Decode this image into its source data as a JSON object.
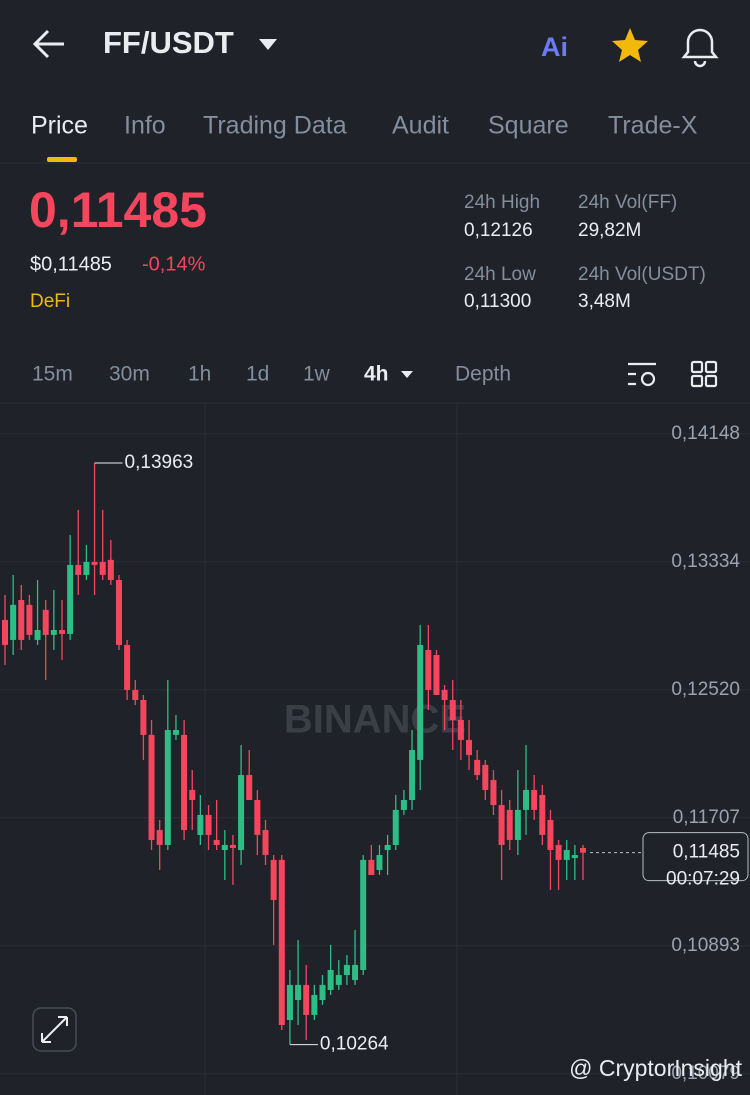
{
  "header": {
    "pair": "FF/USDT",
    "ai_label": "Ai"
  },
  "tabs": [
    "Price",
    "Info",
    "Trading Data",
    "Audit",
    "Square",
    "Trade-X"
  ],
  "price": {
    "last": "0,11485",
    "usd": "$0,11485",
    "change": "-0,14%",
    "tag": "DeFi"
  },
  "stats": [
    {
      "label": "24h High",
      "value": "0,12126"
    },
    {
      "label": "24h Vol(FF)",
      "value": "29,82M"
    },
    {
      "label": "24h Low",
      "value": "0,11300"
    },
    {
      "label": "24h Vol(USDT)",
      "value": "3,48M"
    }
  ],
  "intervals": [
    "15m",
    "30m",
    "1h",
    "1d",
    "1w",
    "4h",
    "Depth"
  ],
  "watermark": "BINANCE",
  "footer": "@ CryptorInsight",
  "chart_data": {
    "type": "candlestick",
    "up_color": "#2ebd85",
    "down_color": "#f6465d",
    "grid": true,
    "ylim": [
      0.09944,
      0.14332
    ],
    "yticks": [
      {
        "value": 0.14148,
        "label": "0,14148"
      },
      {
        "value": 0.13334,
        "label": "0,13334"
      },
      {
        "value": 0.1252,
        "label": "0,12520"
      },
      {
        "value": 0.11707,
        "label": "0,11707"
      },
      {
        "value": 0.10893,
        "label": "0,10893"
      },
      {
        "value": 0.10079,
        "label": "0,10079"
      }
    ],
    "annotations": {
      "high": {
        "value": 0.13963,
        "label": "0,13963"
      },
      "low": {
        "value": 0.10264,
        "label": "0,10264"
      },
      "last": {
        "value": 0.11485,
        "label": "0,11485",
        "countdown": "00:07:29"
      }
    },
    "ohlc": [
      [
        0.12965,
        0.13124,
        0.12679,
        0.12806
      ],
      [
        0.12838,
        0.13251,
        0.12742,
        0.13061
      ],
      [
        0.13092,
        0.13188,
        0.12774,
        0.12838
      ],
      [
        0.13061,
        0.13124,
        0.12838,
        0.1287
      ],
      [
        0.12838,
        0.13219,
        0.12806,
        0.12901
      ],
      [
        0.13029,
        0.13092,
        0.12583,
        0.1287
      ],
      [
        0.1287,
        0.13156,
        0.12774,
        0.12901
      ],
      [
        0.12901,
        0.13092,
        0.12711,
        0.12876
      ],
      [
        0.12876,
        0.13506,
        0.12838,
        0.13315
      ],
      [
        0.13315,
        0.13665,
        0.13124,
        0.13251
      ],
      [
        0.13251,
        0.13442,
        0.13219,
        0.13334
      ],
      [
        0.13334,
        0.13963,
        0.13124,
        0.13315
      ],
      [
        0.13334,
        0.13665,
        0.13219,
        0.13251
      ],
      [
        0.13347,
        0.13474,
        0.13188,
        0.13219
      ],
      [
        0.13219,
        0.13251,
        0.12774,
        0.12806
      ],
      [
        0.12806,
        0.12838,
        0.12456,
        0.1252
      ],
      [
        0.1252,
        0.12583,
        0.12424,
        0.12456
      ],
      [
        0.12456,
        0.12488,
        0.12075,
        0.12234
      ],
      [
        0.12234,
        0.12329,
        0.11502,
        0.11566
      ],
      [
        0.11629,
        0.11693,
        0.11375,
        0.11534
      ],
      [
        0.11534,
        0.12583,
        0.11502,
        0.12265
      ],
      [
        0.12234,
        0.12361,
        0.12202,
        0.12265
      ],
      [
        0.12234,
        0.12329,
        0.11566,
        0.11629
      ],
      [
        0.11884,
        0.12011,
        0.11629,
        0.1182
      ],
      [
        0.11598,
        0.11852,
        0.11534,
        0.11725
      ],
      [
        0.11725,
        0.11788,
        0.11502,
        0.11598
      ],
      [
        0.11566,
        0.1182,
        0.11502,
        0.11534
      ],
      [
        0.11502,
        0.11629,
        0.11311,
        0.11534
      ],
      [
        0.11534,
        0.11598,
        0.1128,
        0.11515
      ],
      [
        0.11502,
        0.1217,
        0.11407,
        0.11979
      ],
      [
        0.11979,
        0.12138,
        0.1182,
        0.1182
      ],
      [
        0.1182,
        0.11884,
        0.1147,
        0.11598
      ],
      [
        0.11629,
        0.11693,
        0.11407,
        0.1147
      ],
      [
        0.11439,
        0.1147,
        0.10898,
        0.11184
      ],
      [
        0.11439,
        0.1147,
        0.10357,
        0.10389
      ],
      [
        0.10421,
        0.10739,
        0.10264,
        0.10644
      ],
      [
        0.10548,
        0.1093,
        0.10389,
        0.10644
      ],
      [
        0.10644,
        0.10771,
        0.10294,
        0.10453
      ],
      [
        0.10453,
        0.10644,
        0.10421,
        0.1058
      ],
      [
        0.10548,
        0.10707,
        0.10517,
        0.10644
      ],
      [
        0.10612,
        0.10898,
        0.1058,
        0.10739
      ],
      [
        0.10644,
        0.10803,
        0.10612,
        0.10707
      ],
      [
        0.10707,
        0.10834,
        0.10644,
        0.10771
      ],
      [
        0.10675,
        0.10993,
        0.10644,
        0.10771
      ],
      [
        0.10739,
        0.1147,
        0.10707,
        0.11439
      ],
      [
        0.11439,
        0.11534,
        0.11343,
        0.11343
      ],
      [
        0.11375,
        0.11534,
        0.11343,
        0.1147
      ],
      [
        0.11502,
        0.11598,
        0.11343,
        0.11534
      ],
      [
        0.11534,
        0.11852,
        0.11502,
        0.11757
      ],
      [
        0.11757,
        0.11884,
        0.11725,
        0.1182
      ],
      [
        0.1182,
        0.12265,
        0.11757,
        0.12138
      ],
      [
        0.12075,
        0.12933,
        0.11884,
        0.12806
      ],
      [
        0.12774,
        0.12933,
        0.12393,
        0.1252
      ],
      [
        0.12742,
        0.12774,
        0.12488,
        0.12488
      ],
      [
        0.1252,
        0.12551,
        0.12265,
        0.12456
      ],
      [
        0.12456,
        0.12583,
        0.12138,
        0.12329
      ],
      [
        0.12329,
        0.12456,
        0.12075,
        0.12202
      ],
      [
        0.12202,
        0.12329,
        0.12011,
        0.12106
      ],
      [
        0.12075,
        0.12138,
        0.11947,
        0.11979
      ],
      [
        0.12043,
        0.12075,
        0.1182,
        0.11884
      ],
      [
        0.11947,
        0.12011,
        0.11725,
        0.11788
      ],
      [
        0.11788,
        0.11884,
        0.11311,
        0.11534
      ],
      [
        0.11757,
        0.1182,
        0.11502,
        0.11566
      ],
      [
        0.11566,
        0.12011,
        0.1147,
        0.11757
      ],
      [
        0.11757,
        0.1217,
        0.11598,
        0.11884
      ],
      [
        0.11884,
        0.11979,
        0.11693,
        0.11757
      ],
      [
        0.11852,
        0.11916,
        0.11534,
        0.11598
      ],
      [
        0.11693,
        0.11757,
        0.11248,
        0.11502
      ],
      [
        0.11534,
        0.11566,
        0.11248,
        0.11439
      ],
      [
        0.11439,
        0.11566,
        0.11311,
        0.11502
      ],
      [
        0.11451,
        0.11534,
        0.11311,
        0.1147
      ],
      [
        0.11515,
        0.11534,
        0.11311,
        0.11485
      ]
    ]
  }
}
